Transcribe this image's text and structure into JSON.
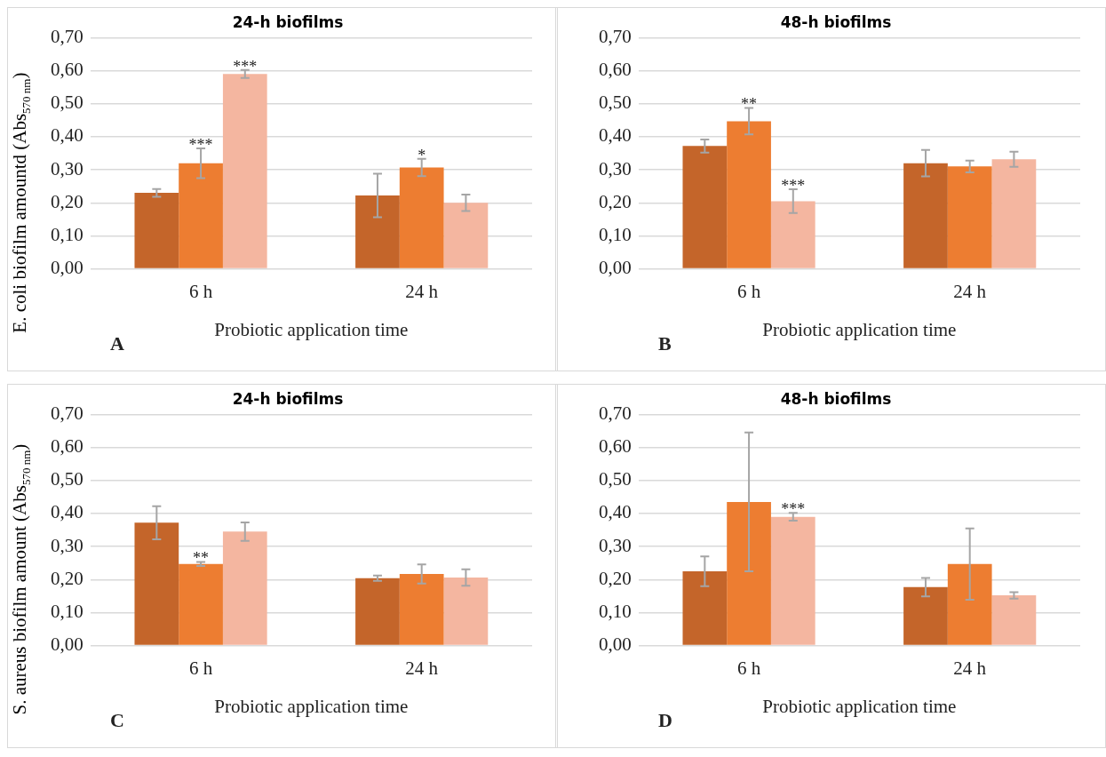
{
  "chart_data": [
    {
      "type": "bar",
      "title": "24-h biofilms",
      "xlabel": "Probiotic application time",
      "ylabel": "E. coli biofilm amountd  (Abs$_{570 nm}$)",
      "categories": [
        "6 h",
        "24 h"
      ],
      "series": [
        {
          "color": "#c4652a",
          "values": [
            0.23,
            0.222
          ],
          "errors": [
            0.012,
            0.066
          ]
        },
        {
          "color": "#ed7d31",
          "values": [
            0.32,
            0.307
          ],
          "errors": [
            0.045,
            0.026
          ]
        },
        {
          "color": "#f4b6a0",
          "values": [
            0.59,
            0.2
          ],
          "errors": [
            0.012,
            0.025
          ]
        }
      ],
      "ylim": [
        0,
        0.7
      ],
      "yticks": [
        {
          "value": 0,
          "label": "0,00"
        },
        {
          "value": 0.1,
          "label": "0,10"
        },
        {
          "value": 0.2,
          "label": "0,20"
        },
        {
          "value": 0.3,
          "label": "0,30"
        },
        {
          "value": 0.4,
          "label": "0,40"
        },
        {
          "value": 0.5,
          "label": "0,50"
        },
        {
          "value": 0.6,
          "label": "0,60"
        },
        {
          "value": 0.7,
          "label": "0,70"
        }
      ],
      "grid": "y",
      "legend": false,
      "annotations": [
        "***",
        "***",
        "*",
        "A"
      ]
    },
    {
      "type": "bar",
      "title": "48-h biofilms",
      "xlabel": "Probiotic application time",
      "categories": [
        "6 h",
        "24 h"
      ],
      "series": [
        {
          "color": "#c4652a",
          "values": [
            0.372,
            0.32
          ],
          "errors": [
            0.02,
            0.04
          ]
        },
        {
          "color": "#ed7d31",
          "values": [
            0.447,
            0.31
          ],
          "errors": [
            0.04,
            0.018
          ]
        },
        {
          "color": "#f4b6a0",
          "values": [
            0.205,
            0.332
          ],
          "errors": [
            0.036,
            0.023
          ]
        }
      ],
      "ylim": [
        0,
        0.7
      ],
      "yticks": [
        {
          "value": 0,
          "label": "0,00"
        },
        {
          "value": 0.1,
          "label": "0,10"
        },
        {
          "value": 0.2,
          "label": "0,20"
        },
        {
          "value": 0.3,
          "label": "0,30"
        },
        {
          "value": 0.4,
          "label": "0,40"
        },
        {
          "value": 0.5,
          "label": "0,50"
        },
        {
          "value": 0.6,
          "label": "0,60"
        },
        {
          "value": 0.7,
          "label": "0,70"
        }
      ],
      "grid": "y",
      "legend": false,
      "annotations": [
        "**",
        "***",
        "B"
      ]
    },
    {
      "type": "bar",
      "title": "24-h biofilms",
      "xlabel": "Probiotic application time",
      "ylabel": "S. aureus biofilm amount (Abs$_{570 nm}$)",
      "categories": [
        "6 h",
        "24 h"
      ],
      "series": [
        {
          "color": "#c4652a",
          "values": [
            0.372,
            0.204
          ],
          "errors": [
            0.05,
            0.008
          ]
        },
        {
          "color": "#ed7d31",
          "values": [
            0.247,
            0.217
          ],
          "errors": [
            0.006,
            0.029
          ]
        },
        {
          "color": "#f4b6a0",
          "values": [
            0.345,
            0.206
          ],
          "errors": [
            0.028,
            0.025
          ]
        }
      ],
      "ylim": [
        0,
        0.7
      ],
      "yticks": [
        {
          "value": 0,
          "label": "0,00"
        },
        {
          "value": 0.1,
          "label": "0,10"
        },
        {
          "value": 0.2,
          "label": "0,20"
        },
        {
          "value": 0.3,
          "label": "0,30"
        },
        {
          "value": 0.4,
          "label": "0,40"
        },
        {
          "value": 0.5,
          "label": "0,50"
        },
        {
          "value": 0.6,
          "label": "0,60"
        },
        {
          "value": 0.7,
          "label": "0,70"
        }
      ],
      "grid": "y",
      "legend": false,
      "annotations": [
        "**",
        "C"
      ]
    },
    {
      "type": "bar",
      "title": "48-h biofilms",
      "xlabel": "Probiotic application time",
      "categories": [
        "6 h",
        "24 h"
      ],
      "series": [
        {
          "color": "#c4652a",
          "values": [
            0.225,
            0.177
          ],
          "errors": [
            0.045,
            0.028
          ]
        },
        {
          "color": "#ed7d31",
          "values": [
            0.435,
            0.247
          ],
          "errors": [
            0.21,
            0.108
          ]
        },
        {
          "color": "#f4b6a0",
          "values": [
            0.39,
            0.152
          ],
          "errors": [
            0.012,
            0.01
          ]
        }
      ],
      "ylim": [
        0,
        0.7
      ],
      "yticks": [
        {
          "value": 0,
          "label": "0,00"
        },
        {
          "value": 0.1,
          "label": "0,10"
        },
        {
          "value": 0.2,
          "label": "0,20"
        },
        {
          "value": 0.3,
          "label": "0,30"
        },
        {
          "value": 0.4,
          "label": "0,40"
        },
        {
          "value": 0.5,
          "label": "0,50"
        },
        {
          "value": 0.6,
          "label": "0,60"
        },
        {
          "value": 0.7,
          "label": "0,70"
        }
      ],
      "grid": "y",
      "legend": false,
      "annotations": [
        "***",
        "D"
      ]
    }
  ]
}
